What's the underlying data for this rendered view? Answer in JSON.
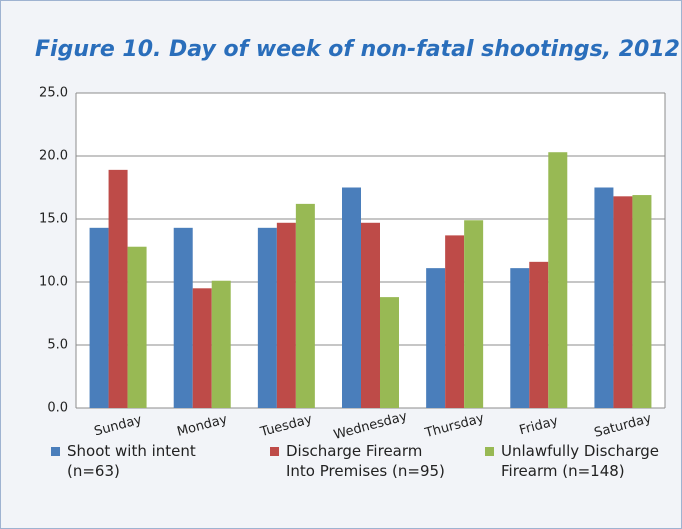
{
  "chart_data": {
    "type": "bar",
    "title": "Figure 10. Day of week of non-fatal shootings, 2012",
    "categories": [
      "Sunday",
      "Monday",
      "Tuesday",
      "Wednesday",
      "Thursday",
      "Friday",
      "Saturday"
    ],
    "series": [
      {
        "name": "Shoot with intent (n=63)",
        "color": "#4a7ebb",
        "values": [
          14.3,
          14.3,
          14.3,
          17.5,
          11.1,
          11.1,
          17.5
        ]
      },
      {
        "name": "Discharge Firearm Into Premises (n=95)",
        "color": "#be4b48",
        "values": [
          18.9,
          9.5,
          14.7,
          14.7,
          13.7,
          11.6,
          16.8
        ]
      },
      {
        "name": "Unlawfully Discharge Firearm (n=148)",
        "color": "#98b954",
        "values": [
          12.8,
          10.1,
          16.2,
          8.8,
          14.9,
          20.3,
          16.9
        ]
      }
    ],
    "ylim": [
      0,
      25
    ],
    "yticks": [
      {
        "value": 0,
        "label": "0.0"
      },
      {
        "value": 5,
        "label": "5.0"
      },
      {
        "value": 10,
        "label": "10.0"
      },
      {
        "value": 15,
        "label": "15.0"
      },
      {
        "value": 20,
        "label": "20.0"
      },
      {
        "value": 25,
        "label": "25.0"
      }
    ],
    "grid": true
  }
}
